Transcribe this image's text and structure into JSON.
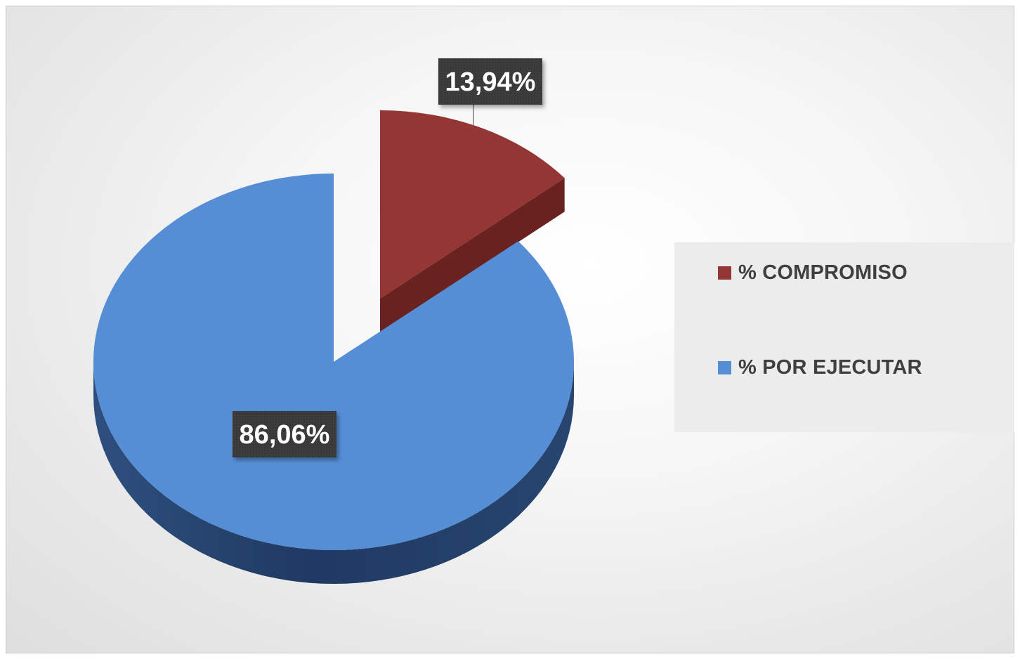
{
  "chart_data": {
    "type": "pie",
    "style": "3d-exploded",
    "categories": [
      "% COMPROMISO",
      "% POR EJECUTAR"
    ],
    "values": [
      13.94,
      86.06
    ],
    "data_labels": [
      "13,94%",
      "86,06%"
    ],
    "colors": [
      "#943634",
      "#558ed5"
    ],
    "legend_position": "right",
    "exploded_slice": "% COMPROMISO"
  },
  "legend": {
    "items": [
      {
        "label": "% COMPROMISO",
        "color": "#943634"
      },
      {
        "label": "% POR EJECUTAR",
        "color": "#558ed5"
      }
    ]
  }
}
